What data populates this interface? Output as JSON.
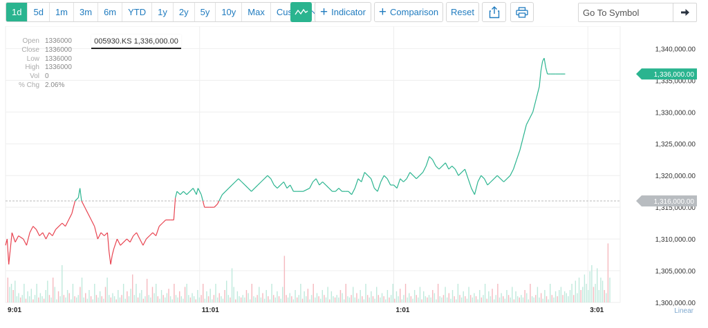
{
  "toolbar": {
    "ranges": [
      "1d",
      "5d",
      "1m",
      "3m",
      "6m",
      "YTD",
      "1y",
      "2y",
      "5y",
      "10y",
      "Max"
    ],
    "active_range": "1d",
    "custom_label": "Custom",
    "indicator_label": "Indicator",
    "comparison_label": "Comparison",
    "reset_label": "Reset",
    "goto_placeholder": "Go To Symbol",
    "accent_color": "#2ab48f"
  },
  "ohlc": {
    "open_label": "Open",
    "open": "1336000",
    "close_label": "Close",
    "close": "1336000",
    "low_label": "Low",
    "low": "1336000",
    "high_label": "High",
    "high": "1336000",
    "vol_label": "Vol",
    "vol": "0",
    "chg_label": "% Chg",
    "chg": "2.06%"
  },
  "tooltip": "005930.KS 1,336,000.00",
  "chart_data": {
    "type": "line",
    "symbol": "005930.KS",
    "scale_label": "Linear",
    "y_ticks": [
      "1,340,000.00",
      "1,335,000.00",
      "1,330,000.00",
      "1,325,000.00",
      "1,320,000.00",
      "1,315,000.00",
      "1,310,000.00",
      "1,305,000.00",
      "1,300,000.00"
    ],
    "y_tick_values": [
      1340000,
      1335000,
      1330000,
      1325000,
      1320000,
      1315000,
      1310000,
      1305000,
      1300000
    ],
    "x_ticks": [
      "9:01",
      "11:01",
      "1:01",
      "3:01"
    ],
    "ylim": [
      1300000,
      1342000
    ],
    "x_range_minutes": [
      0,
      380
    ],
    "x_tick_minutes": [
      0,
      120,
      240,
      360
    ],
    "previous_close": 1316000,
    "previous_close_label": "1,316,000.00",
    "last_price": 1336000,
    "last_price_label": "1,336,000.00",
    "up_color": "#2ab48f",
    "down_color": "#e8424f",
    "grid": true,
    "price": [
      [
        0,
        1309000
      ],
      [
        1,
        1310000
      ],
      [
        2,
        1306000
      ],
      [
        4,
        1311000
      ],
      [
        6,
        1309500
      ],
      [
        8,
        1310500
      ],
      [
        11,
        1310000
      ],
      [
        13,
        1309000
      ],
      [
        15,
        1311000
      ],
      [
        17,
        1312000
      ],
      [
        19,
        1311500
      ],
      [
        21,
        1310500
      ],
      [
        23,
        1311000
      ],
      [
        25,
        1310000
      ],
      [
        27,
        1311000
      ],
      [
        29,
        1310500
      ],
      [
        31,
        1311500
      ],
      [
        33,
        1312000
      ],
      [
        35,
        1312500
      ],
      [
        37,
        1312000
      ],
      [
        39,
        1313000
      ],
      [
        41,
        1314000
      ],
      [
        43,
        1316000
      ],
      [
        45,
        1316500
      ],
      [
        46,
        1318000
      ],
      [
        47,
        1316000
      ],
      [
        49,
        1315000
      ],
      [
        51,
        1314000
      ],
      [
        53,
        1313000
      ],
      [
        55,
        1312000
      ],
      [
        57,
        1310000
      ],
      [
        59,
        1311000
      ],
      [
        61,
        1310500
      ],
      [
        63,
        1311000
      ],
      [
        64,
        1308000
      ],
      [
        65,
        1306000
      ],
      [
        66,
        1307500
      ],
      [
        67,
        1308500
      ],
      [
        69,
        1310000
      ],
      [
        71,
        1309000
      ],
      [
        73,
        1309500
      ],
      [
        75,
        1310000
      ],
      [
        77,
        1309500
      ],
      [
        79,
        1310500
      ],
      [
        81,
        1311000
      ],
      [
        83,
        1310000
      ],
      [
        85,
        1309000
      ],
      [
        87,
        1310000
      ],
      [
        89,
        1310500
      ],
      [
        91,
        1311000
      ],
      [
        93,
        1310500
      ],
      [
        95,
        1312000
      ],
      [
        97,
        1312500
      ],
      [
        99,
        1313000
      ],
      [
        102,
        1313000
      ],
      [
        104,
        1313000
      ],
      [
        105,
        1316500
      ],
      [
        106,
        1317500
      ],
      [
        108,
        1317000
      ],
      [
        110,
        1317500
      ],
      [
        112,
        1317000
      ],
      [
        114,
        1317500
      ],
      [
        116,
        1318000
      ],
      [
        118,
        1317000
      ],
      [
        119,
        1318000
      ],
      [
        121,
        1317000
      ],
      [
        122,
        1316000
      ],
      [
        123,
        1315000
      ],
      [
        126,
        1315000
      ],
      [
        129,
        1315000
      ],
      [
        131,
        1315500
      ],
      [
        132,
        1316000
      ],
      [
        134,
        1317000
      ],
      [
        136,
        1317500
      ],
      [
        138,
        1318000
      ],
      [
        140,
        1318500
      ],
      [
        142,
        1319000
      ],
      [
        144,
        1319500
      ],
      [
        146,
        1319000
      ],
      [
        148,
        1318500
      ],
      [
        150,
        1318000
      ],
      [
        152,
        1317500
      ],
      [
        154,
        1318000
      ],
      [
        156,
        1318500
      ],
      [
        158,
        1319000
      ],
      [
        160,
        1319500
      ],
      [
        162,
        1320000
      ],
      [
        164,
        1319500
      ],
      [
        166,
        1318500
      ],
      [
        168,
        1318000
      ],
      [
        170,
        1318500
      ],
      [
        172,
        1319000
      ],
      [
        174,
        1318000
      ],
      [
        176,
        1318500
      ],
      [
        178,
        1317500
      ],
      [
        180,
        1317500
      ],
      [
        184,
        1317500
      ],
      [
        188,
        1318000
      ],
      [
        190,
        1319000
      ],
      [
        192,
        1319500
      ],
      [
        194,
        1318500
      ],
      [
        196,
        1319000
      ],
      [
        198,
        1318500
      ],
      [
        200,
        1318000
      ],
      [
        202,
        1317500
      ],
      [
        204,
        1317500
      ],
      [
        206,
        1318000
      ],
      [
        208,
        1317500
      ],
      [
        210,
        1317500
      ],
      [
        212,
        1317500
      ],
      [
        214,
        1317000
      ],
      [
        216,
        1318000
      ],
      [
        218,
        1319500
      ],
      [
        220,
        1319000
      ],
      [
        222,
        1320500
      ],
      [
        224,
        1320000
      ],
      [
        226,
        1319500
      ],
      [
        228,
        1318000
      ],
      [
        230,
        1317500
      ],
      [
        232,
        1319000
      ],
      [
        234,
        1320000
      ],
      [
        236,
        1319500
      ],
      [
        238,
        1318500
      ],
      [
        240,
        1318500
      ],
      [
        242,
        1318000
      ],
      [
        244,
        1319500
      ],
      [
        246,
        1319000
      ],
      [
        248,
        1319500
      ],
      [
        250,
        1320500
      ],
      [
        252,
        1320000
      ],
      [
        254,
        1319500
      ],
      [
        256,
        1320000
      ],
      [
        258,
        1320500
      ],
      [
        260,
        1321500
      ],
      [
        262,
        1323000
      ],
      [
        264,
        1322500
      ],
      [
        266,
        1321500
      ],
      [
        268,
        1321000
      ],
      [
        270,
        1321500
      ],
      [
        272,
        1322000
      ],
      [
        274,
        1321000
      ],
      [
        276,
        1321500
      ],
      [
        278,
        1321000
      ],
      [
        280,
        1320000
      ],
      [
        282,
        1320500
      ],
      [
        284,
        1321000
      ],
      [
        286,
        1319500
      ],
      [
        288,
        1318000
      ],
      [
        290,
        1317000
      ],
      [
        292,
        1319000
      ],
      [
        294,
        1320000
      ],
      [
        296,
        1319500
      ],
      [
        298,
        1318500
      ],
      [
        300,
        1319000
      ],
      [
        302,
        1319500
      ],
      [
        304,
        1320000
      ],
      [
        306,
        1319500
      ],
      [
        308,
        1319000
      ],
      [
        310,
        1319500
      ],
      [
        312,
        1320000
      ],
      [
        314,
        1321000
      ],
      [
        316,
        1322500
      ],
      [
        318,
        1324000
      ],
      [
        320,
        1326000
      ],
      [
        322,
        1328000
      ],
      [
        324,
        1329000
      ],
      [
        326,
        1330000
      ],
      [
        328,
        1332000
      ],
      [
        330,
        1334000
      ],
      [
        331,
        1336500
      ],
      [
        332,
        1338000
      ],
      [
        333,
        1338500
      ],
      [
        334,
        1337000
      ],
      [
        335,
        1336000
      ],
      [
        337,
        1336000
      ],
      [
        340,
        1336000
      ],
      [
        343,
        1336000
      ],
      [
        346,
        1336000
      ]
    ],
    "volume_max": 100,
    "volume": [
      0,
      40,
      25,
      30,
      20,
      35,
      10,
      15,
      8,
      12,
      30,
      6,
      18,
      10,
      22,
      5,
      12,
      30,
      8,
      15,
      10,
      6,
      20,
      35,
      12,
      8,
      40,
      25,
      5,
      18,
      10,
      60,
      12,
      8,
      20,
      15,
      5,
      30,
      10,
      8,
      12,
      25,
      40,
      8,
      15,
      6,
      20,
      10,
      5,
      30,
      12,
      8,
      18,
      10,
      6,
      25,
      40,
      12,
      8,
      15,
      10,
      5,
      20,
      8,
      12,
      30,
      6,
      18,
      10,
      22,
      45,
      12,
      30,
      8,
      15,
      20,
      6,
      10,
      38,
      12,
      8,
      25,
      15,
      30,
      10,
      6,
      20,
      12,
      8,
      15,
      22,
      10,
      5,
      30,
      12,
      8,
      18,
      10,
      6,
      25,
      30,
      12,
      8,
      15,
      10,
      5,
      20,
      8,
      12,
      30,
      6,
      18,
      10,
      22,
      5,
      12,
      30,
      8,
      15,
      10,
      6,
      20,
      35,
      12,
      8,
      55,
      25,
      5,
      18,
      10,
      8,
      12,
      8,
      20,
      15,
      5,
      30,
      10,
      8,
      12,
      25,
      8,
      15,
      6,
      20,
      10,
      5,
      30,
      12,
      8,
      18,
      10,
      6,
      25,
      75,
      12,
      8,
      15,
      10,
      5,
      20,
      8,
      12,
      30,
      6,
      18,
      10,
      22,
      5,
      12,
      30,
      8,
      15,
      10,
      6,
      20,
      12,
      8,
      25,
      5,
      18,
      10,
      8,
      12,
      8,
      20,
      15,
      5,
      30,
      10,
      8,
      12,
      25,
      8,
      15,
      6,
      20,
      10,
      5,
      30,
      12,
      8,
      18,
      10,
      6,
      25,
      12,
      8,
      15,
      10,
      5,
      20,
      8,
      12,
      30,
      6,
      18,
      10,
      22,
      5,
      12,
      30,
      8,
      15,
      10,
      6,
      20,
      12,
      8,
      25,
      5,
      18,
      10,
      8,
      12,
      8,
      20,
      15,
      5,
      30,
      10,
      8,
      12,
      25,
      8,
      15,
      6,
      20,
      10,
      5,
      30,
      12,
      8,
      18,
      10,
      6,
      25,
      12,
      8,
      15,
      10,
      5,
      20,
      8,
      12,
      30,
      6,
      18,
      10,
      22,
      5,
      12,
      30,
      8,
      15,
      10,
      6,
      20,
      12,
      8,
      25,
      5,
      18,
      10,
      8,
      12,
      8,
      20,
      15,
      5,
      30,
      10,
      8,
      12,
      25,
      8,
      15,
      6,
      20,
      10,
      5,
      30,
      12,
      8,
      18,
      10,
      20,
      25,
      12,
      18,
      15,
      10,
      20,
      30,
      12,
      35,
      15,
      40,
      20,
      25,
      45,
      30,
      20,
      50,
      60,
      25,
      30,
      55,
      20,
      40,
      35,
      20,
      15,
      95,
      40,
      0,
      0,
      0,
      0,
      0
    ],
    "volume_up": [
      1,
      0,
      1,
      1,
      0,
      1,
      1,
      1,
      0,
      1,
      1,
      0,
      1,
      1,
      1,
      0,
      1,
      1,
      0,
      1,
      1,
      0,
      1,
      1,
      0,
      1,
      0,
      1,
      1,
      0,
      1,
      1,
      0,
      1,
      1,
      0,
      1,
      1,
      0,
      1,
      1,
      0,
      1,
      1,
      0,
      1,
      1,
      0,
      1,
      1,
      0,
      1,
      1,
      0,
      1,
      0,
      1,
      1,
      0,
      1,
      1,
      0,
      1,
      1,
      0,
      1,
      1,
      0,
      1,
      1,
      0,
      1,
      1,
      0,
      1,
      1,
      0,
      1,
      0,
      1,
      1,
      0,
      1,
      1,
      0,
      1,
      1,
      0,
      1,
      1,
      0,
      1,
      1,
      0,
      1,
      1,
      0,
      1,
      1,
      0,
      1,
      1,
      0,
      1,
      1,
      0,
      1,
      1,
      0,
      0,
      1,
      1,
      0,
      1,
      1,
      0,
      1,
      1,
      0,
      1,
      1,
      0,
      1,
      1,
      0,
      1,
      1,
      0,
      1,
      1,
      0,
      1,
      1,
      0,
      1,
      1,
      0,
      1,
      1,
      0,
      1,
      1,
      0,
      1,
      1,
      0,
      1,
      1,
      0,
      1,
      1,
      0,
      1,
      1,
      0,
      0,
      1,
      1,
      0,
      1,
      1,
      0,
      1,
      1,
      0,
      1,
      1,
      0,
      1,
      1,
      0,
      1,
      1,
      0,
      1,
      1,
      0,
      1,
      1,
      0,
      1,
      1,
      0,
      1,
      1,
      0,
      1,
      1,
      0,
      1,
      1,
      0,
      1,
      1,
      0,
      1,
      1,
      0,
      1,
      1,
      0,
      1,
      1,
      0,
      1,
      1,
      0,
      1,
      1,
      0,
      1,
      1,
      0,
      1,
      1,
      0,
      1,
      1,
      0,
      1,
      1,
      0,
      1,
      1,
      0,
      1,
      1,
      0,
      1,
      1,
      0,
      1,
      1,
      0,
      1,
      1,
      0,
      1,
      1,
      0,
      1,
      1,
      0,
      1,
      1,
      0,
      1,
      1,
      0,
      1,
      1,
      0,
      1,
      1,
      0,
      1,
      1,
      0,
      1,
      1,
      0,
      1,
      1,
      0,
      1,
      1,
      0,
      1,
      1,
      0,
      1,
      1,
      0,
      1,
      1,
      0,
      1,
      1,
      0,
      1,
      1,
      0,
      1,
      1,
      0,
      1,
      1,
      0,
      1,
      1,
      0,
      1,
      1,
      0,
      1,
      1,
      0,
      1,
      1,
      0,
      1,
      1,
      0,
      1,
      1,
      0,
      1,
      1,
      0,
      1,
      1,
      1,
      1,
      1,
      0,
      1,
      1,
      1,
      0,
      1,
      1,
      1,
      1,
      1,
      1,
      0,
      1,
      1,
      1,
      1,
      1,
      0,
      1,
      0,
      1,
      1,
      1,
      1,
      1,
      1
    ]
  }
}
